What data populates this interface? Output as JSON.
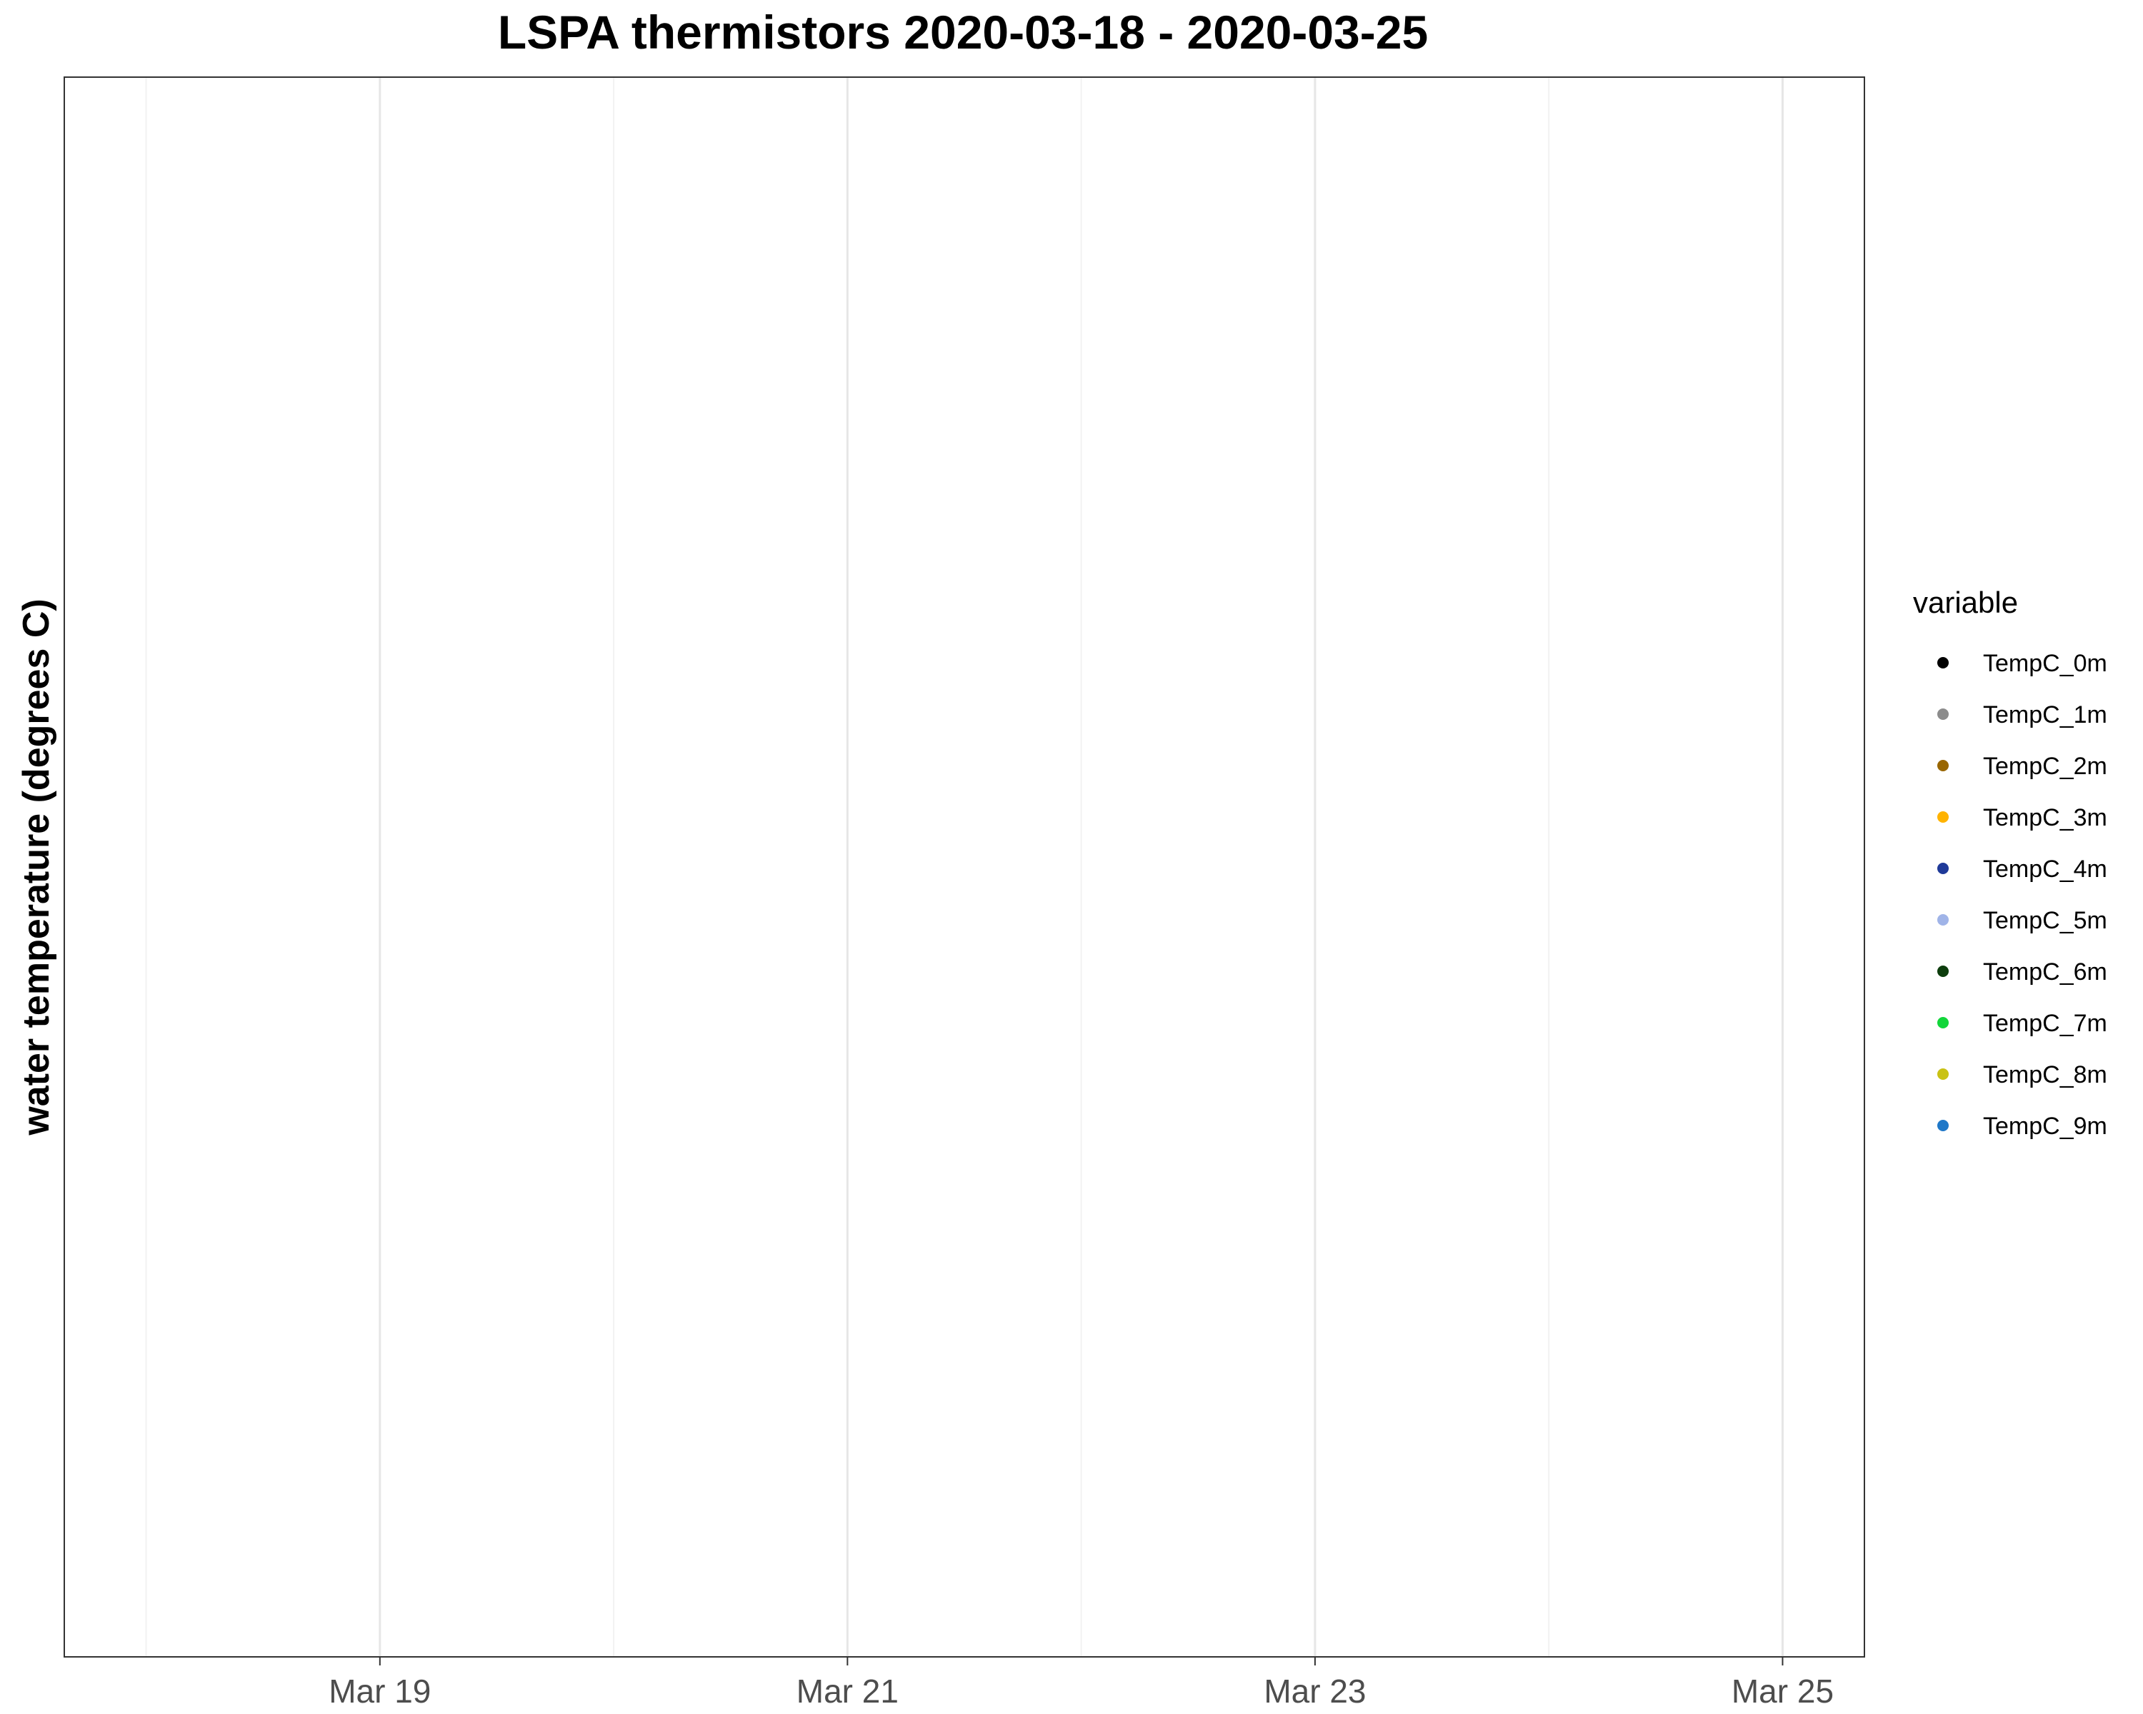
{
  "chart_data": {
    "type": "scatter",
    "title": "LSPA thermistors 2020-03-18 - 2020-03-25",
    "xlabel": "",
    "ylabel": "water temperature (degrees C)",
    "xlim": [
      "2020-03-18",
      "2020-03-25"
    ],
    "x_ticks": [
      {
        "date": "2020-03-19",
        "label": "Mar 19"
      },
      {
        "date": "2020-03-21",
        "label": "Mar 21"
      },
      {
        "date": "2020-03-23",
        "label": "Mar 23"
      },
      {
        "date": "2020-03-25",
        "label": "Mar 25"
      }
    ],
    "x_minor_gridlines": [
      "2020-03-18",
      "2020-03-20",
      "2020-03-22",
      "2020-03-24"
    ],
    "grid": "vertical only",
    "legend": {
      "title": "variable",
      "placement": "right",
      "entries": [
        {
          "name": "TempC_0m",
          "color": "#000000"
        },
        {
          "name": "TempC_1m",
          "color": "#8c8c8c"
        },
        {
          "name": "TempC_2m",
          "color": "#996600"
        },
        {
          "name": "TempC_3m",
          "color": "#ffb300"
        },
        {
          "name": "TempC_4m",
          "color": "#1f3a99"
        },
        {
          "name": "TempC_5m",
          "color": "#a0b4e8"
        },
        {
          "name": "TempC_6m",
          "color": "#0d3d0d"
        },
        {
          "name": "TempC_7m",
          "color": "#12d63a"
        },
        {
          "name": "TempC_8m",
          "color": "#c9c214"
        },
        {
          "name": "TempC_9m",
          "color": "#1f78c8"
        }
      ]
    },
    "series": []
  }
}
